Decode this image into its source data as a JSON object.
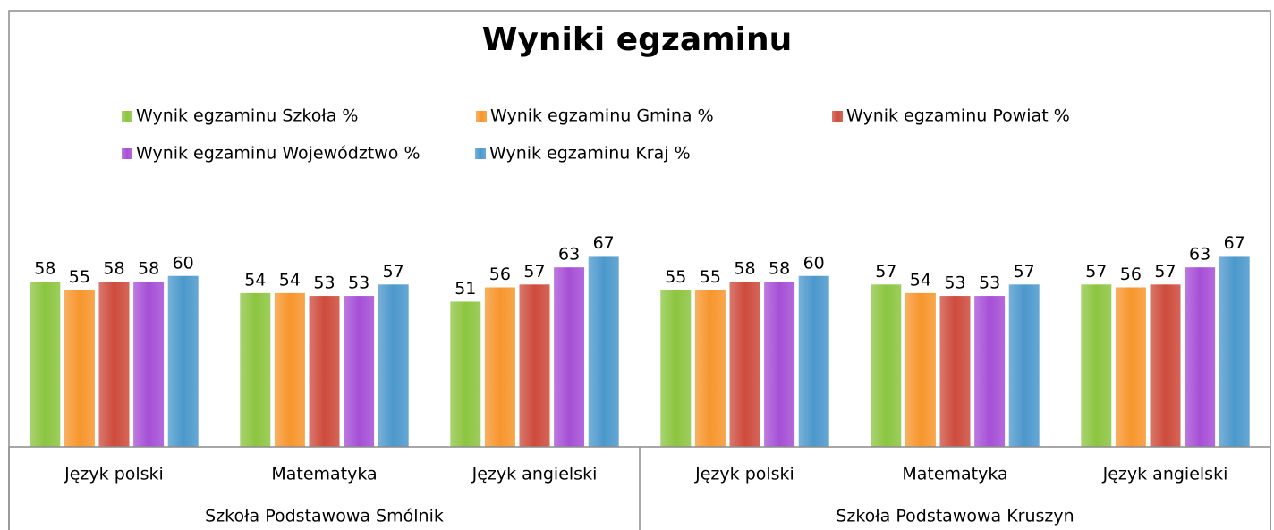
{
  "chart_data": {
    "type": "bar",
    "title": "Wyniki egzaminu",
    "categories": [
      "Język polski",
      "Matematyka",
      "Język angielski",
      "Język polski",
      "Matematyka",
      "Język angielski"
    ],
    "group_labels": [
      "Szkoła Podstawowa Smólnik",
      "Szkoła Podstawowa Kruszyn"
    ],
    "series": [
      {
        "name": "Wynik egzaminu Szkoła %",
        "color": "#8cc540",
        "values": [
          58,
          54,
          51,
          55,
          57,
          57
        ]
      },
      {
        "name": "Wynik egzaminu Gmina %",
        "color": "#f7962d",
        "values": [
          55,
          54,
          56,
          55,
          54,
          56
        ]
      },
      {
        "name": "Wynik egzaminu Powiat %",
        "color": "#cd4b3c",
        "values": [
          58,
          53,
          57,
          58,
          53,
          57
        ]
      },
      {
        "name": "Wynik egzaminu Województwo %",
        "color": "#a64fd6",
        "values": [
          58,
          53,
          63,
          58,
          53,
          63
        ]
      },
      {
        "name": "Wynik egzaminu Kraj %",
        "color": "#4b98cc",
        "values": [
          60,
          57,
          67,
          60,
          57,
          67
        ]
      }
    ],
    "ylim": [
      0,
      80
    ],
    "legend": "top"
  }
}
